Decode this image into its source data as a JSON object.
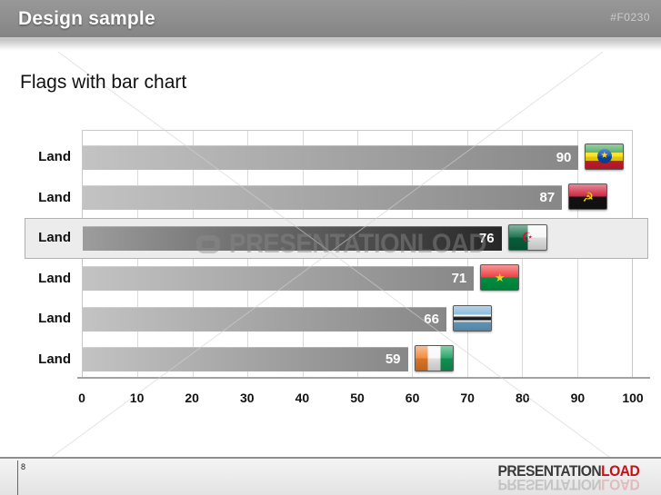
{
  "header": {
    "title": "Design sample",
    "code": "#F0230"
  },
  "slide_title": "Flags with bar chart",
  "page_number": "8",
  "watermark_text": "PRESENTATIONLOAD",
  "footer_brand": {
    "primary": "PRESENTATION",
    "accent": "LOAD"
  },
  "chart_data": {
    "type": "bar",
    "orientation": "horizontal",
    "categories": [
      "Land",
      "Land",
      "Land",
      "Land",
      "Land",
      "Land"
    ],
    "values": [
      90,
      87,
      76,
      71,
      66,
      59
    ],
    "flags": [
      "ethiopia",
      "angola",
      "algeria",
      "burkina-faso",
      "botswana",
      "ivory-coast"
    ],
    "highlighted_index": 2,
    "x_ticks": [
      0,
      10,
      20,
      30,
      40,
      50,
      60,
      70,
      80,
      90,
      100
    ],
    "xlim": [
      0,
      100
    ],
    "grid": true,
    "legend": false,
    "colors": {
      "bar_gradient": [
        "#c3c3c3",
        "#878787"
      ],
      "highlight_gradient": [
        "#9d9d9d",
        "#262626"
      ],
      "value_text": "#ffffff"
    }
  }
}
